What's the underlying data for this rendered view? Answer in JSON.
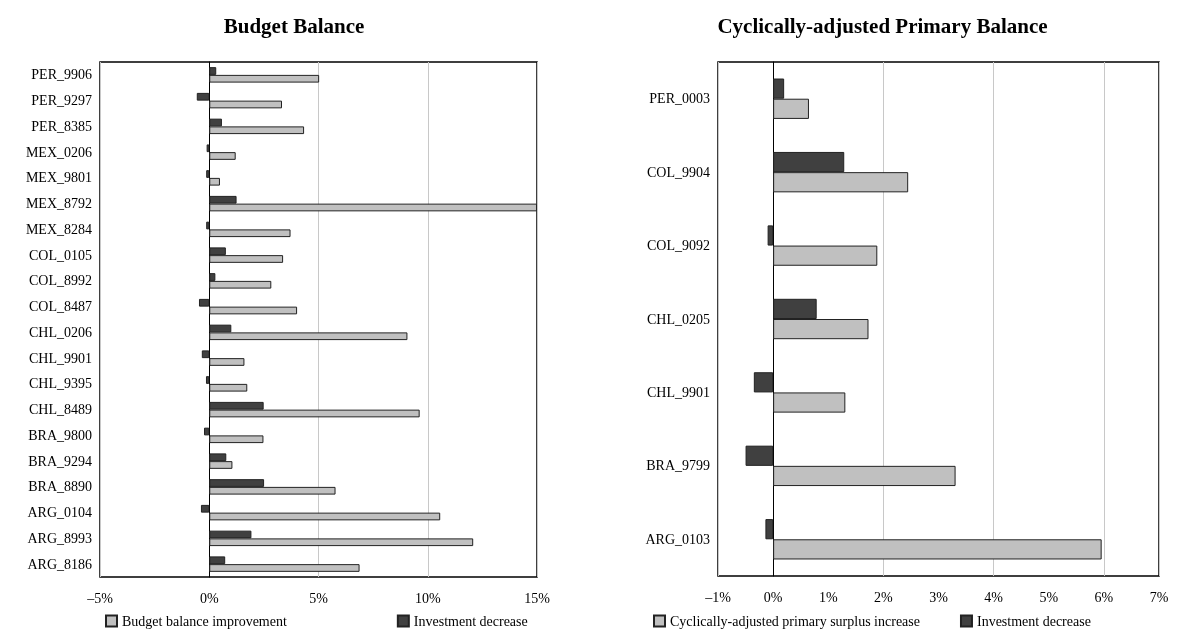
{
  "chart_data": [
    {
      "type": "bar",
      "title": "Budget Balance",
      "orientation": "horizontal",
      "categories": [
        "PER_9906",
        "PER_9297",
        "PER_8385",
        "MEX_0206",
        "MEX_9801",
        "MEX_8792",
        "MEX_8284",
        "COL_0105",
        "COL_8992",
        "COL_8487",
        "CHL_0206",
        "CHL_9901",
        "CHL_9395",
        "CHL_8489",
        "BRA_9800",
        "BRA_9294",
        "BRA_8890",
        "ARG_0104",
        "ARG_8993",
        "ARG_8186"
      ],
      "series": [
        {
          "name": "Budget balance improvement",
          "color": "#c0c0c0",
          "values": [
            5.03,
            3.33,
            4.34,
            1.21,
            0.49,
            15,
            3.72,
            3.38,
            2.84,
            4.02,
            9.07,
            1.61,
            1.74,
            9.63,
            2.48,
            1.06,
            5.78,
            10.57,
            12.08,
            6.88
          ]
        },
        {
          "name": "Investment decrease",
          "color": "#404040",
          "values": [
            0.32,
            -0.57,
            0.58,
            -0.12,
            -0.14,
            1.25,
            -0.14,
            0.76,
            0.28,
            -0.47,
            1.01,
            -0.34,
            -0.15,
            2.49,
            -0.24,
            0.78,
            2.51,
            -0.38,
            1.93,
            0.73
          ]
        }
      ],
      "xlim": [
        -5,
        15
      ],
      "xticks": [
        {
          "value": -5,
          "label": "–5%"
        },
        {
          "value": 0,
          "label": "0%"
        },
        {
          "value": 5,
          "label": "5%"
        },
        {
          "value": 10,
          "label": "10%"
        },
        {
          "value": 15,
          "label": "15%"
        }
      ],
      "grid": "x",
      "legend": "bottom"
    },
    {
      "type": "bar",
      "title": "Cyclically-adjusted Primary Balance",
      "orientation": "horizontal",
      "categories": [
        "PER_0003",
        "COL_9904",
        "COL_9092",
        "CHL_0205",
        "CHL_9901",
        "BRA_9799",
        "ARG_0103"
      ],
      "series": [
        {
          "name": "Cyclically-adjusted primary surplus increase",
          "color": "#c0c0c0",
          "values": [
            0.65,
            2.45,
            1.89,
            1.73,
            1.31,
            3.31,
            5.96
          ]
        },
        {
          "name": "Investment decrease",
          "color": "#404040",
          "values": [
            0.2,
            1.29,
            -0.1,
            0.79,
            -0.35,
            -0.5,
            -0.14
          ]
        }
      ],
      "xlim": [
        -1,
        7
      ],
      "xticks": [
        {
          "value": -1,
          "label": "–1%"
        },
        {
          "value": 0,
          "label": "0%"
        },
        {
          "value": 1,
          "label": "1%"
        },
        {
          "value": 2,
          "label": "2%"
        },
        {
          "value": 3,
          "label": "3%"
        },
        {
          "value": 4,
          "label": "4%"
        },
        {
          "value": 5,
          "label": "5%"
        },
        {
          "value": 6,
          "label": "6%"
        },
        {
          "value": 7,
          "label": "7%"
        }
      ],
      "grid": "x",
      "legend": "bottom"
    }
  ]
}
